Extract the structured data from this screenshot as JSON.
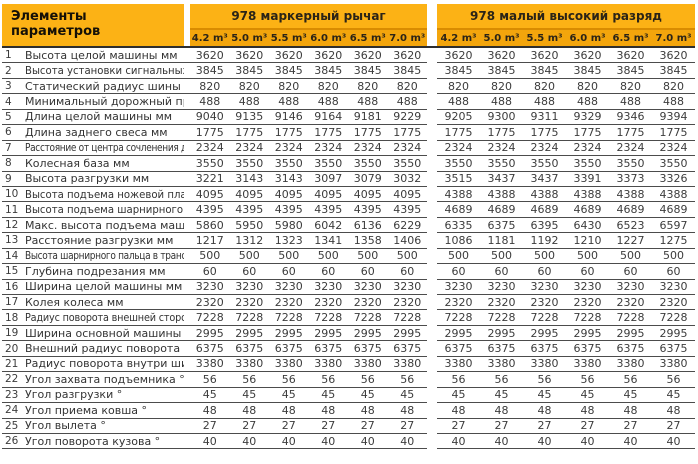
{
  "colors": {
    "header_yellow": "#FCB215",
    "subheader_yellow": "#F3A50C",
    "divider_orange": "#D98C00",
    "row_line": "#4c4c4c",
    "header_line": "#2e2e2e",
    "header_text": "#2b2417",
    "body_text": "#3c3c3c"
  },
  "table": {
    "corner": {
      "line1": "Элементы",
      "line2": "параметров"
    },
    "groups": [
      {
        "label": "978 маркерный рычаг",
        "capacities": [
          "4.2 m³",
          "5.0 m³",
          "5.5 m³",
          "6.0 m³",
          "6.5 m³",
          "7.0 m³"
        ]
      },
      {
        "label": "978 малый высокий разряд",
        "capacities": [
          "4.2 m³",
          "5.0 m³",
          "5.5 m³",
          "6.0 m³",
          "6.5 m³",
          "7.0 m³"
        ]
      }
    ],
    "rows": [
      {
        "num": "1",
        "label": "Высота целой машины мм",
        "g1": [
          3620,
          3620,
          3620,
          3620,
          3620,
          3620
        ],
        "g2": [
          3620,
          3620,
          3620,
          3620,
          3620,
          3620
        ]
      },
      {
        "num": "2",
        "label": "Высота установки сигнальных огней мм",
        "g1": [
          3845,
          3845,
          3845,
          3845,
          3845,
          3845
        ],
        "g2": [
          3845,
          3845,
          3845,
          3845,
          3845,
          3845
        ]
      },
      {
        "num": "3",
        "label": "Статический радиус шины мм",
        "g1": [
          820,
          820,
          820,
          820,
          820,
          820
        ],
        "g2": [
          820,
          820,
          820,
          820,
          820,
          820
        ]
      },
      {
        "num": "4",
        "label": "Минимальный дорожный просвет мм",
        "g1": [
          488,
          488,
          488,
          488,
          488,
          488
        ],
        "g2": [
          488,
          488,
          488,
          488,
          488,
          488
        ]
      },
      {
        "num": "5",
        "label": "Длина целой машины мм",
        "g1": [
          9040,
          9135,
          9146,
          9164,
          9181,
          9229
        ],
        "g2": [
          9205,
          9300,
          9311,
          9329,
          9346,
          9394
        ]
      },
      {
        "num": "6",
        "label": "Длина заднего свеса мм",
        "g1": [
          1775,
          1775,
          1775,
          1775,
          1775,
          1775
        ],
        "g2": [
          1775,
          1775,
          1775,
          1775,
          1775,
          1775
        ]
      },
      {
        "num": "7",
        "label": "Расстояние от центра сочленения до заднего моста мм",
        "g1": [
          2324,
          2324,
          2324,
          2324,
          2324,
          2324
        ],
        "g2": [
          2324,
          2324,
          2324,
          2324,
          2324,
          2324
        ]
      },
      {
        "num": "8",
        "label": "Колесная база мм",
        "g1": [
          3550,
          3550,
          3550,
          3550,
          3550,
          3550
        ],
        "g2": [
          3550,
          3550,
          3550,
          3550,
          3550,
          3550
        ]
      },
      {
        "num": "9",
        "label": "Высота разгрузки мм",
        "g1": [
          3221,
          3143,
          3143,
          3097,
          3079,
          3032
        ],
        "g2": [
          3515,
          3437,
          3437,
          3391,
          3373,
          3326
        ]
      },
      {
        "num": "10",
        "label": "Высота подъема ножевой пластины мм",
        "g1": [
          4095,
          4095,
          4095,
          4095,
          4095,
          4095
        ],
        "g2": [
          4388,
          4388,
          4388,
          4388,
          4388,
          4388
        ]
      },
      {
        "num": "11",
        "label": "Высота подъема шарнирного пальца мм",
        "g1": [
          4395,
          4395,
          4395,
          4395,
          4395,
          4395
        ],
        "g2": [
          4689,
          4689,
          4689,
          4689,
          4689,
          4689
        ]
      },
      {
        "num": "12",
        "label": "Макс. высота подъема машины мм",
        "g1": [
          5860,
          5950,
          5980,
          6042,
          6136,
          6229
        ],
        "g2": [
          6335,
          6375,
          6395,
          6430,
          6523,
          6597
        ]
      },
      {
        "num": "13",
        "label": "Расстояние разгрузки мм",
        "g1": [
          1217,
          1312,
          1323,
          1341,
          1358,
          1406
        ],
        "g2": [
          1086,
          1181,
          1192,
          1210,
          1227,
          1275
        ]
      },
      {
        "num": "14",
        "label": "Высота шарнирного пальца в транспортном положении мм",
        "g1": [
          500,
          500,
          500,
          500,
          500,
          500
        ],
        "g2": [
          500,
          500,
          500,
          500,
          500,
          500
        ]
      },
      {
        "num": "15",
        "label": "Глубина подрезания мм",
        "g1": [
          60,
          60,
          60,
          60,
          60,
          60
        ],
        "g2": [
          60,
          60,
          60,
          60,
          60,
          60
        ]
      },
      {
        "num": "16",
        "label": "Ширина целой машины мм",
        "g1": [
          3230,
          3230,
          3230,
          3230,
          3230,
          3230
        ],
        "g2": [
          3230,
          3230,
          3230,
          3230,
          3230,
          3230
        ]
      },
      {
        "num": "17",
        "label": "Колея колеса мм",
        "g1": [
          2320,
          2320,
          2320,
          2320,
          2320,
          2320
        ],
        "g2": [
          2320,
          2320,
          2320,
          2320,
          2320,
          2320
        ]
      },
      {
        "num": "18",
        "label": "Радиус поворота внешней стороны машины мм",
        "g1": [
          7228,
          7228,
          7228,
          7228,
          7228,
          7228
        ],
        "g2": [
          7228,
          7228,
          7228,
          7228,
          7228,
          7228
        ]
      },
      {
        "num": "19",
        "label": "Ширина основной машины мм",
        "g1": [
          2995,
          2995,
          2995,
          2995,
          2995,
          2995
        ],
        "g2": [
          2995,
          2995,
          2995,
          2995,
          2995,
          2995
        ]
      },
      {
        "num": "20",
        "label": "Внешний радиус поворота шин мм",
        "g1": [
          6375,
          6375,
          6375,
          6375,
          6375,
          6375
        ],
        "g2": [
          6375,
          6375,
          6375,
          6375,
          6375,
          6375
        ]
      },
      {
        "num": "21",
        "label": "Радиус поворота внутри шины мм",
        "g1": [
          3380,
          3380,
          3380,
          3380,
          3380,
          3380
        ],
        "g2": [
          3380,
          3380,
          3380,
          3380,
          3380,
          3380
        ]
      },
      {
        "num": "22",
        "label": "Угол захвата подъемника °",
        "g1": [
          56,
          56,
          56,
          56,
          56,
          56
        ],
        "g2": [
          56,
          56,
          56,
          56,
          56,
          56
        ]
      },
      {
        "num": "23",
        "label": "Угол разгрузки °",
        "g1": [
          45,
          45,
          45,
          45,
          45,
          45
        ],
        "g2": [
          45,
          45,
          45,
          45,
          45,
          45
        ]
      },
      {
        "num": "24",
        "label": "Угол приема ковша °",
        "g1": [
          48,
          48,
          48,
          48,
          48,
          48
        ],
        "g2": [
          48,
          48,
          48,
          48,
          48,
          48
        ]
      },
      {
        "num": "25",
        "label": "Угол вылета °",
        "g1": [
          27,
          27,
          27,
          27,
          27,
          27
        ],
        "g2": [
          27,
          27,
          27,
          27,
          27,
          27
        ]
      },
      {
        "num": "26",
        "label": "Угол поворота кузова °",
        "g1": [
          40,
          40,
          40,
          40,
          40,
          40
        ],
        "g2": [
          40,
          40,
          40,
          40,
          40,
          40
        ]
      }
    ]
  }
}
